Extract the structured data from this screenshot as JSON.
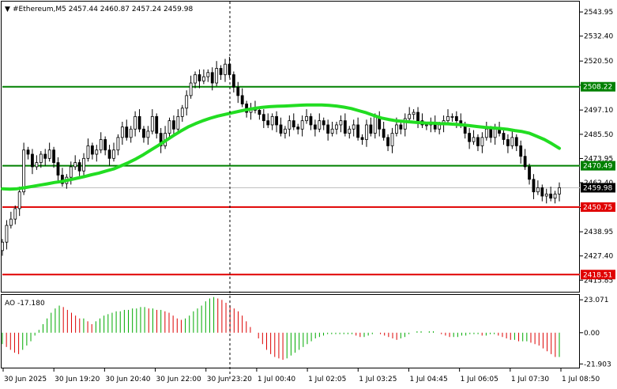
{
  "header": {
    "symbol_line": "#Ethereum,M5  2457.44 2460.87 2457.24 2459.98"
  },
  "colors": {
    "background": "#ffffff",
    "frame": "#000000",
    "candle": "#000000",
    "ma_line": "#22dd22",
    "support_green": "#008000",
    "support_red": "#e00000",
    "current_line": "#bfbfbf",
    "ao_up": "#00aa00",
    "ao_down": "#dd0000",
    "vline": "#000000"
  },
  "chart_data": [
    {
      "type": "candlestick",
      "title": "#Ethereum,M5",
      "ylim": [
        2410.3,
        2548.9
      ],
      "y_ticks": [
        "2543.95",
        "2532.40",
        "2520.50",
        "2508.95",
        "2497.10",
        "2485.50",
        "2473.95",
        "2462.40",
        "2450.50",
        "2438.95",
        "2427.40",
        "2415.85"
      ],
      "y_tick_values": [
        2543.95,
        2532.4,
        2520.5,
        2508.95,
        2497.1,
        2485.5,
        2473.95,
        2462.4,
        2450.5,
        2438.95,
        2427.4,
        2415.85
      ],
      "x_ticks": [
        "30 Jun 2025",
        "30 Jun 19:20",
        "30 Jun 20:40",
        "30 Jun 22:00",
        "30 Jun 23:20",
        "1 Jul 00:40",
        "1 Jul 02:05",
        "1 Jul 03:25",
        "1 Jul 04:45",
        "1 Jul 06:05",
        "1 Jul 07:30",
        "1 Jul 08:50"
      ],
      "levels": [
        {
          "value": 2508.22,
          "label": "2508.22",
          "color": "#008000"
        },
        {
          "value": 2470.49,
          "label": "2470.49",
          "color": "#008000"
        },
        {
          "value": 2450.75,
          "label": "2450.75",
          "color": "#e00000"
        },
        {
          "value": 2418.51,
          "label": "2418.51",
          "color": "#e00000"
        }
      ],
      "current_price": {
        "value": 2459.98,
        "label": "2459.98"
      },
      "close": [
        2434,
        2442,
        2445,
        2450,
        2458,
        2478,
        2476,
        2470,
        2472,
        2476,
        2474,
        2478,
        2472,
        2466,
        2462,
        2465,
        2470,
        2472,
        2468,
        2474,
        2480,
        2476,
        2478,
        2483,
        2478,
        2474,
        2478,
        2484,
        2489,
        2484,
        2488,
        2494,
        2488,
        2484,
        2487,
        2494,
        2486,
        2480,
        2486,
        2492,
        2488,
        2494,
        2498,
        2504,
        2510,
        2514,
        2511,
        2513,
        2515,
        2510,
        2517,
        2514,
        2519,
        2514,
        2508,
        2504,
        2500,
        2496,
        2498,
        2497,
        2495,
        2492,
        2490,
        2494,
        2490,
        2486,
        2488,
        2492,
        2489,
        2488,
        2492,
        2494,
        2490,
        2488,
        2492,
        2490,
        2486,
        2488,
        2490,
        2492,
        2486,
        2488,
        2490,
        2484,
        2483,
        2490,
        2486,
        2494,
        2488,
        2484,
        2480,
        2486,
        2490,
        2488,
        2493,
        2495,
        2496,
        2492,
        2490,
        2490,
        2491,
        2488,
        2490,
        2492,
        2494,
        2494,
        2492,
        2490,
        2486,
        2482,
        2484,
        2480,
        2484,
        2488,
        2484,
        2488,
        2486,
        2483,
        2480,
        2484,
        2480,
        2475,
        2470,
        2464,
        2458,
        2460,
        2456,
        2457,
        2455,
        2457,
        2460
      ],
      "series": [
        {
          "name": "MA",
          "values": [
            2459.5,
            2459.3,
            2459.5,
            2460.0,
            2460.6,
            2461.2,
            2461.8,
            2462.5,
            2463.0,
            2463.7,
            2464.5,
            2465.3,
            2466.2,
            2467.0,
            2468.0,
            2469.0,
            2470.5,
            2472.0,
            2473.8,
            2475.8,
            2478.0,
            2480.2,
            2482.5,
            2484.8,
            2487.0,
            2489.0,
            2490.6,
            2492.0,
            2493.2,
            2494.2,
            2495.0,
            2495.8,
            2496.6,
            2497.3,
            2497.9,
            2498.4,
            2498.7,
            2498.9,
            2499.0,
            2499.2,
            2499.4,
            2499.5,
            2499.5,
            2499.5,
            2499.3,
            2499.0,
            2498.5,
            2497.8,
            2496.8,
            2495.8,
            2494.5,
            2493.3,
            2492.6,
            2492.0,
            2491.7,
            2491.4,
            2491.1,
            2490.9,
            2490.8,
            2490.6,
            2490.5,
            2490.3,
            2490.0,
            2489.6,
            2489.2,
            2488.8,
            2488.6,
            2488.3,
            2487.9,
            2487.3,
            2486.8,
            2486.0,
            2484.5,
            2483.0,
            2481.0,
            2478.8
          ]
        }
      ],
      "ma_x_end": 2478.8
    },
    {
      "type": "bar",
      "title": "AO -17.180",
      "ylim": [
        -24.5,
        26.5
      ],
      "y_ticks": [
        "23.071",
        "0.00",
        "-21.903"
      ],
      "y_tick_values": [
        23.071,
        0.0,
        -21.903
      ],
      "values": [
        -8,
        -10,
        -12,
        -14,
        -15,
        -12,
        -9,
        -6,
        -2,
        2,
        6,
        10,
        14,
        17,
        19,
        18,
        16,
        14,
        12,
        10,
        10,
        8,
        6,
        8,
        10,
        12,
        13,
        14,
        15,
        15,
        16,
        16,
        17,
        17,
        18,
        18,
        17,
        17,
        16,
        16,
        15,
        14,
        12,
        10,
        9,
        10,
        12,
        15,
        17,
        19,
        22,
        24,
        25,
        24,
        23,
        21,
        19,
        17,
        15,
        12,
        8,
        4,
        0,
        -4,
        -8,
        -12,
        -15,
        -17,
        -18,
        -19,
        -18,
        -16,
        -14,
        -12,
        -10,
        -8,
        -6,
        -4,
        -3,
        -2,
        -1,
        -1,
        -1,
        -1,
        -1,
        -1,
        -1,
        -2,
        -3,
        -3,
        -2,
        -1,
        0,
        -1,
        -2,
        -3,
        -4,
        -5,
        -4,
        -3,
        -1,
        0,
        1,
        1,
        0,
        1,
        1,
        0,
        -1,
        -2,
        -3,
        -3,
        -3,
        -2,
        -2,
        -1,
        -1,
        -1,
        -2,
        -2,
        -1,
        -1,
        -2,
        -3,
        -4,
        -5,
        -5,
        -6,
        -6,
        -6,
        -7,
        -8,
        -9,
        -11,
        -13,
        -15,
        -17,
        -17
      ]
    }
  ]
}
